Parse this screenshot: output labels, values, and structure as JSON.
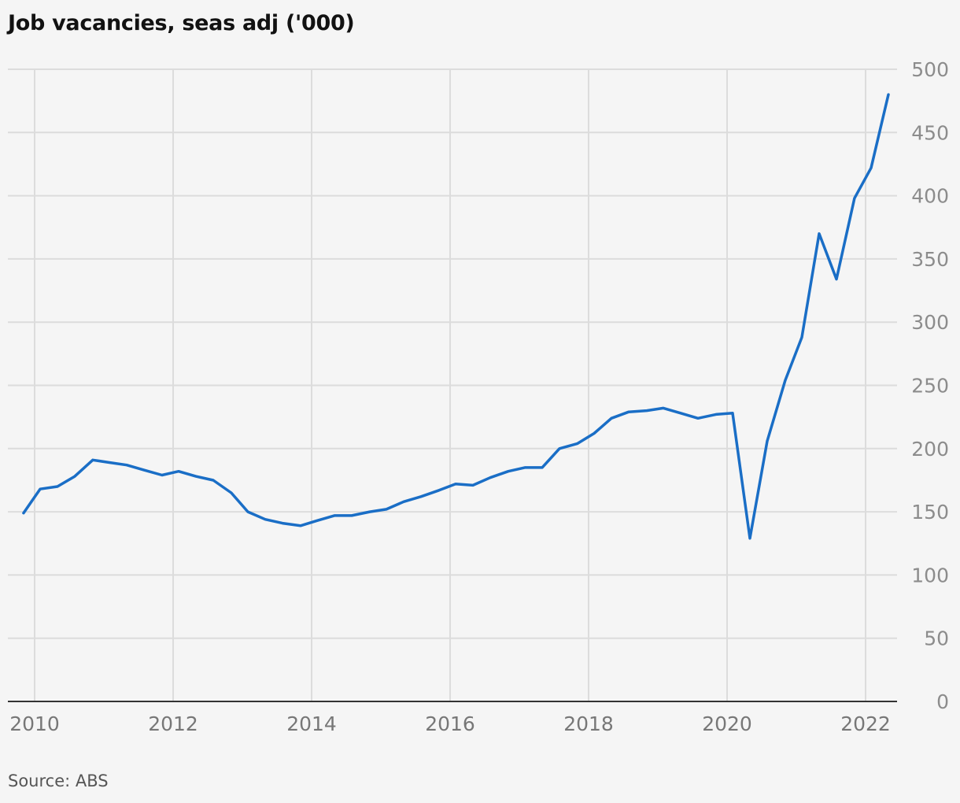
{
  "title": "Job vacancies, seas adj ('000)",
  "source": "Source: ABS",
  "colors": {
    "line": "#1a6ec6",
    "grid": "#dcdcdc",
    "axis": "#333333",
    "background": "#f5f5f5"
  },
  "chart_data": {
    "type": "line",
    "title": "Job vacancies, seas adj ('000)",
    "xlabel": "",
    "ylabel": "",
    "ylim": [
      0,
      500
    ],
    "xlim": [
      2009.8,
      2022.5
    ],
    "yticks": [
      0,
      50,
      100,
      150,
      200,
      250,
      300,
      350,
      400,
      450,
      500
    ],
    "xticks": [
      2010,
      2012,
      2014,
      2016,
      2018,
      2020,
      2022
    ],
    "y_axis_position": "right",
    "grid": true,
    "series": [
      {
        "name": "",
        "x": [
          2009.84,
          2010.08,
          2010.33,
          2010.58,
          2010.84,
          2011.08,
          2011.33,
          2011.58,
          2011.84,
          2012.08,
          2012.33,
          2012.58,
          2012.84,
          2013.08,
          2013.33,
          2013.58,
          2013.84,
          2014.08,
          2014.33,
          2014.58,
          2014.84,
          2015.08,
          2015.33,
          2015.58,
          2015.84,
          2016.08,
          2016.33,
          2016.58,
          2016.84,
          2017.08,
          2017.33,
          2017.58,
          2017.84,
          2018.08,
          2018.33,
          2018.58,
          2018.84,
          2019.08,
          2019.33,
          2019.58,
          2019.84,
          2020.08,
          2020.33,
          2020.58,
          2020.84,
          2021.08,
          2021.33,
          2021.58,
          2021.84,
          2022.08,
          2022.33
        ],
        "y": [
          149,
          168,
          170,
          178,
          191,
          189,
          187,
          183,
          179,
          182,
          178,
          175,
          165,
          150,
          144,
          141,
          139,
          143,
          147,
          147,
          150,
          152,
          158,
          162,
          167,
          172,
          171,
          177,
          182,
          185,
          185,
          200,
          204,
          212,
          224,
          229,
          230,
          232,
          228,
          224,
          227,
          228,
          129,
          206,
          254,
          288,
          370,
          334,
          398,
          422,
          480
        ]
      }
    ]
  }
}
